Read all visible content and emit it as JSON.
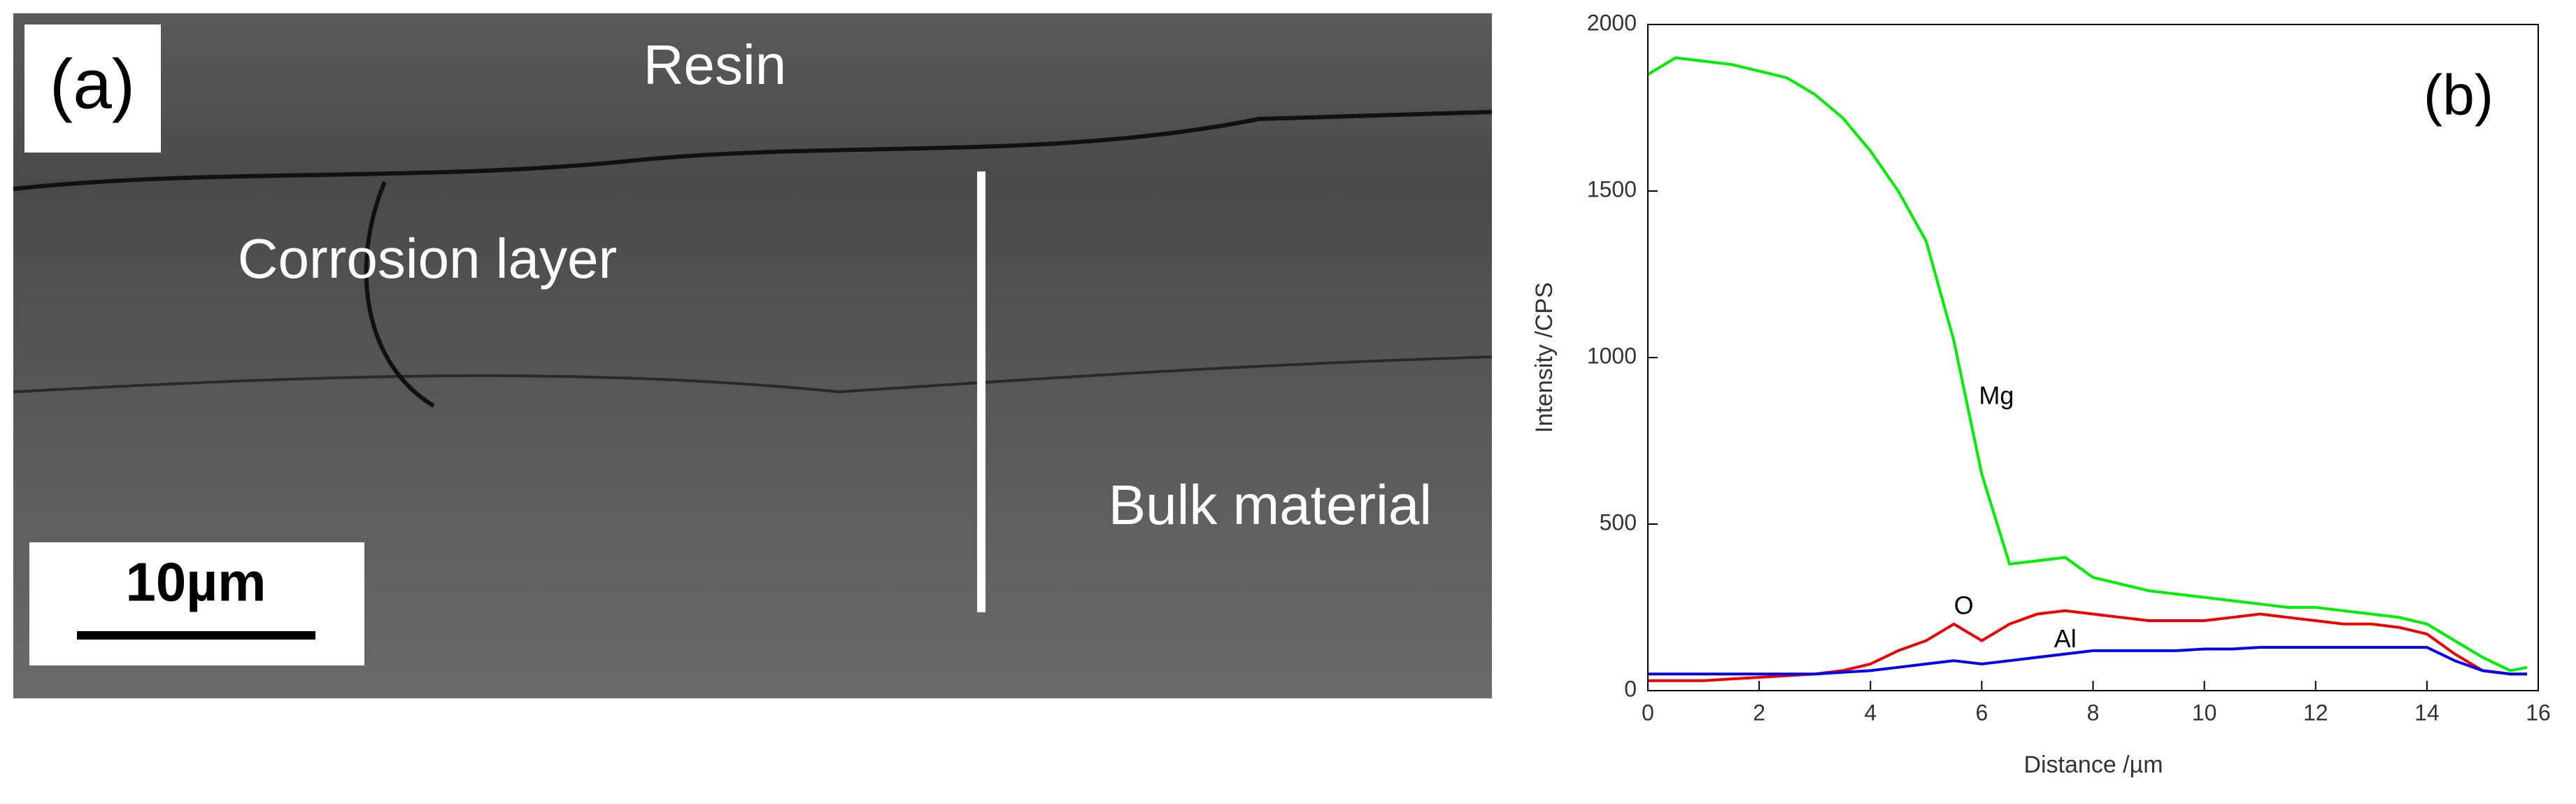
{
  "panel_a": {
    "label": "(a)",
    "regions": [
      "Resin",
      "Corrosion layer",
      "Bulk material"
    ],
    "scale_bar": "10µm"
  },
  "chart_data": {
    "type": "line",
    "panel_label": "(b)",
    "xlabel": "Distance /µm",
    "ylabel": "Intensity /CPS",
    "x": [
      0,
      0.5,
      1,
      1.5,
      2,
      2.5,
      3,
      3.5,
      4,
      4.5,
      5,
      5.5,
      6,
      6.5,
      7,
      7.5,
      8,
      8.5,
      9,
      9.5,
      10,
      10.5,
      11,
      11.5,
      12,
      12.5,
      13,
      13.5,
      14,
      14.5,
      15,
      15.5,
      15.8
    ],
    "series": [
      {
        "name": "Mg",
        "color": "#00ee00",
        "values": [
          1850,
          1900,
          1890,
          1880,
          1860,
          1840,
          1790,
          1720,
          1620,
          1500,
          1350,
          1050,
          650,
          380,
          390,
          400,
          340,
          320,
          300,
          290,
          280,
          270,
          260,
          250,
          250,
          240,
          230,
          220,
          200,
          150,
          100,
          60,
          70
        ]
      },
      {
        "name": "O",
        "color": "#ee0000",
        "values": [
          30,
          30,
          30,
          35,
          40,
          45,
          50,
          60,
          80,
          120,
          150,
          200,
          150,
          200,
          230,
          240,
          230,
          220,
          210,
          210,
          210,
          220,
          230,
          220,
          210,
          200,
          200,
          190,
          170,
          110,
          60,
          50,
          50
        ]
      },
      {
        "name": "Al",
        "color": "#0000ee",
        "values": [
          50,
          50,
          50,
          50,
          50,
          50,
          50,
          55,
          60,
          70,
          80,
          90,
          80,
          90,
          100,
          110,
          120,
          120,
          120,
          120,
          125,
          125,
          130,
          130,
          130,
          130,
          130,
          130,
          130,
          90,
          60,
          50,
          50
        ]
      }
    ],
    "xlim": [
      0,
      16
    ],
    "xticks": [
      0,
      2,
      4,
      6,
      8,
      10,
      12,
      14,
      16
    ],
    "ylim": [
      0,
      2000
    ],
    "yticks": [
      0,
      500,
      1000,
      1500,
      2000
    ]
  }
}
